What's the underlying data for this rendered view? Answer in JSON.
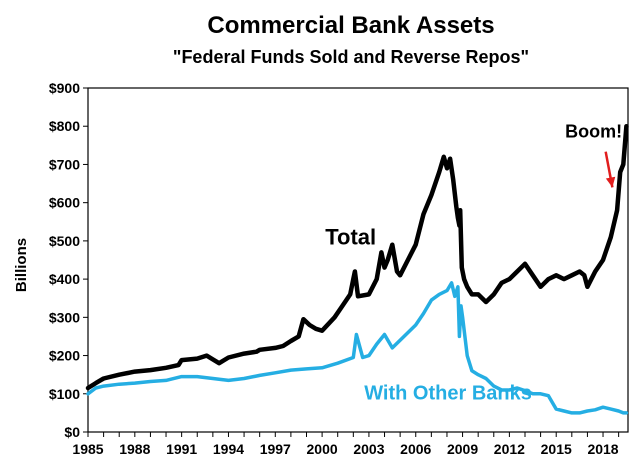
{
  "chart_data": {
    "type": "line",
    "title": "Commercial Bank Assets",
    "subtitle": "\"Federal Funds Sold and Reverse Repos\"",
    "ylabel": "Billions",
    "xlabel": "",
    "xlim": [
      1985,
      2019.6
    ],
    "ylim": [
      0,
      900
    ],
    "xticks": [
      "1985",
      "1988",
      "1991",
      "1994",
      "1997",
      "2000",
      "2003",
      "2006",
      "2009",
      "2012",
      "2015",
      "2018"
    ],
    "yticks": [
      "$0",
      "$100",
      "$200",
      "$300",
      "$400",
      "$500",
      "$600",
      "$700",
      "$800",
      "$900"
    ],
    "grid": false,
    "annotation": {
      "text": "Boom!",
      "x": 2017.4,
      "y": 770,
      "arrow_to": [
        2018.6,
        640
      ]
    },
    "series": [
      {
        "name": "Total",
        "label_pos": [
          2000.2,
          490
        ],
        "color": "#000000",
        "x": [
          1985.0,
          1985.5,
          1986,
          1987,
          1988,
          1989,
          1990,
          1990.8,
          1991,
          1992,
          1992.6,
          1993,
          1993.4,
          1994,
          1995,
          1995.8,
          1996,
          1997,
          1997.5,
          1998,
          1998.5,
          1998.8,
          1999.2,
          1999.6,
          2000,
          2000.8,
          2001.3,
          2001.8,
          2002,
          2002.1,
          2002.3,
          2003,
          2003.5,
          2003.8,
          2004,
          2004.2,
          2004.5,
          2004.8,
          2005,
          2005.5,
          2006,
          2006.5,
          2007,
          2007.5,
          2007.8,
          2008,
          2008.2,
          2008.4,
          2008.6,
          2008.7,
          2008.8,
          2008.85,
          2008.95,
          2009.1,
          2009.3,
          2009.6,
          2010,
          2010.5,
          2011,
          2011.5,
          2012,
          2012.5,
          2013,
          2013.5,
          2014,
          2014.5,
          2015,
          2015.5,
          2016,
          2016.5,
          2016.8,
          2017,
          2017.5,
          2018,
          2018.5,
          2018.9,
          2019.1,
          2019.3,
          2019.5
        ],
        "y": [
          115,
          128,
          140,
          150,
          158,
          162,
          168,
          175,
          188,
          192,
          200,
          190,
          180,
          195,
          205,
          210,
          215,
          220,
          225,
          238,
          250,
          295,
          280,
          270,
          265,
          300,
          330,
          360,
          400,
          420,
          355,
          360,
          400,
          470,
          430,
          450,
          490,
          420,
          410,
          450,
          490,
          570,
          620,
          680,
          720,
          690,
          715,
          660,
          590,
          560,
          540,
          580,
          430,
          400,
          380,
          360,
          360,
          340,
          360,
          390,
          400,
          420,
          440,
          410,
          380,
          400,
          410,
          400,
          410,
          420,
          410,
          380,
          420,
          450,
          510,
          580,
          680,
          700,
          800
        ]
      },
      {
        "name": "With Other Banks",
        "label_pos": [
          2002.7,
          85
        ],
        "color": "#25aee3",
        "x": [
          1985,
          1985.5,
          1986,
          1987,
          1988,
          1989,
          1990,
          1991,
          1992,
          1993,
          1994,
          1995,
          1996,
          1997,
          1998,
          1999,
          2000,
          2001,
          2002,
          2002.2,
          2002.6,
          2003,
          2003.5,
          2004,
          2004.5,
          2005,
          2005.5,
          2006,
          2006.5,
          2007,
          2007.5,
          2008,
          2008.3,
          2008.5,
          2008.7,
          2008.8,
          2008.9,
          2009.0,
          2009.3,
          2009.6,
          2010,
          2010.5,
          2011,
          2011.5,
          2012,
          2012.5,
          2013,
          2013.5,
          2014,
          2014.5,
          2015,
          2015.5,
          2016,
          2016.5,
          2017,
          2017.5,
          2018,
          2018.5,
          2019,
          2019.3,
          2019.5
        ],
        "y": [
          100,
          115,
          120,
          125,
          128,
          132,
          135,
          145,
          145,
          140,
          135,
          140,
          148,
          155,
          162,
          165,
          168,
          180,
          195,
          255,
          195,
          200,
          230,
          255,
          220,
          240,
          260,
          280,
          310,
          345,
          360,
          370,
          390,
          355,
          380,
          250,
          330,
          300,
          200,
          160,
          150,
          140,
          120,
          110,
          110,
          115,
          108,
          100,
          100,
          95,
          60,
          55,
          50,
          50,
          55,
          58,
          65,
          60,
          55,
          50,
          50
        ]
      }
    ]
  }
}
